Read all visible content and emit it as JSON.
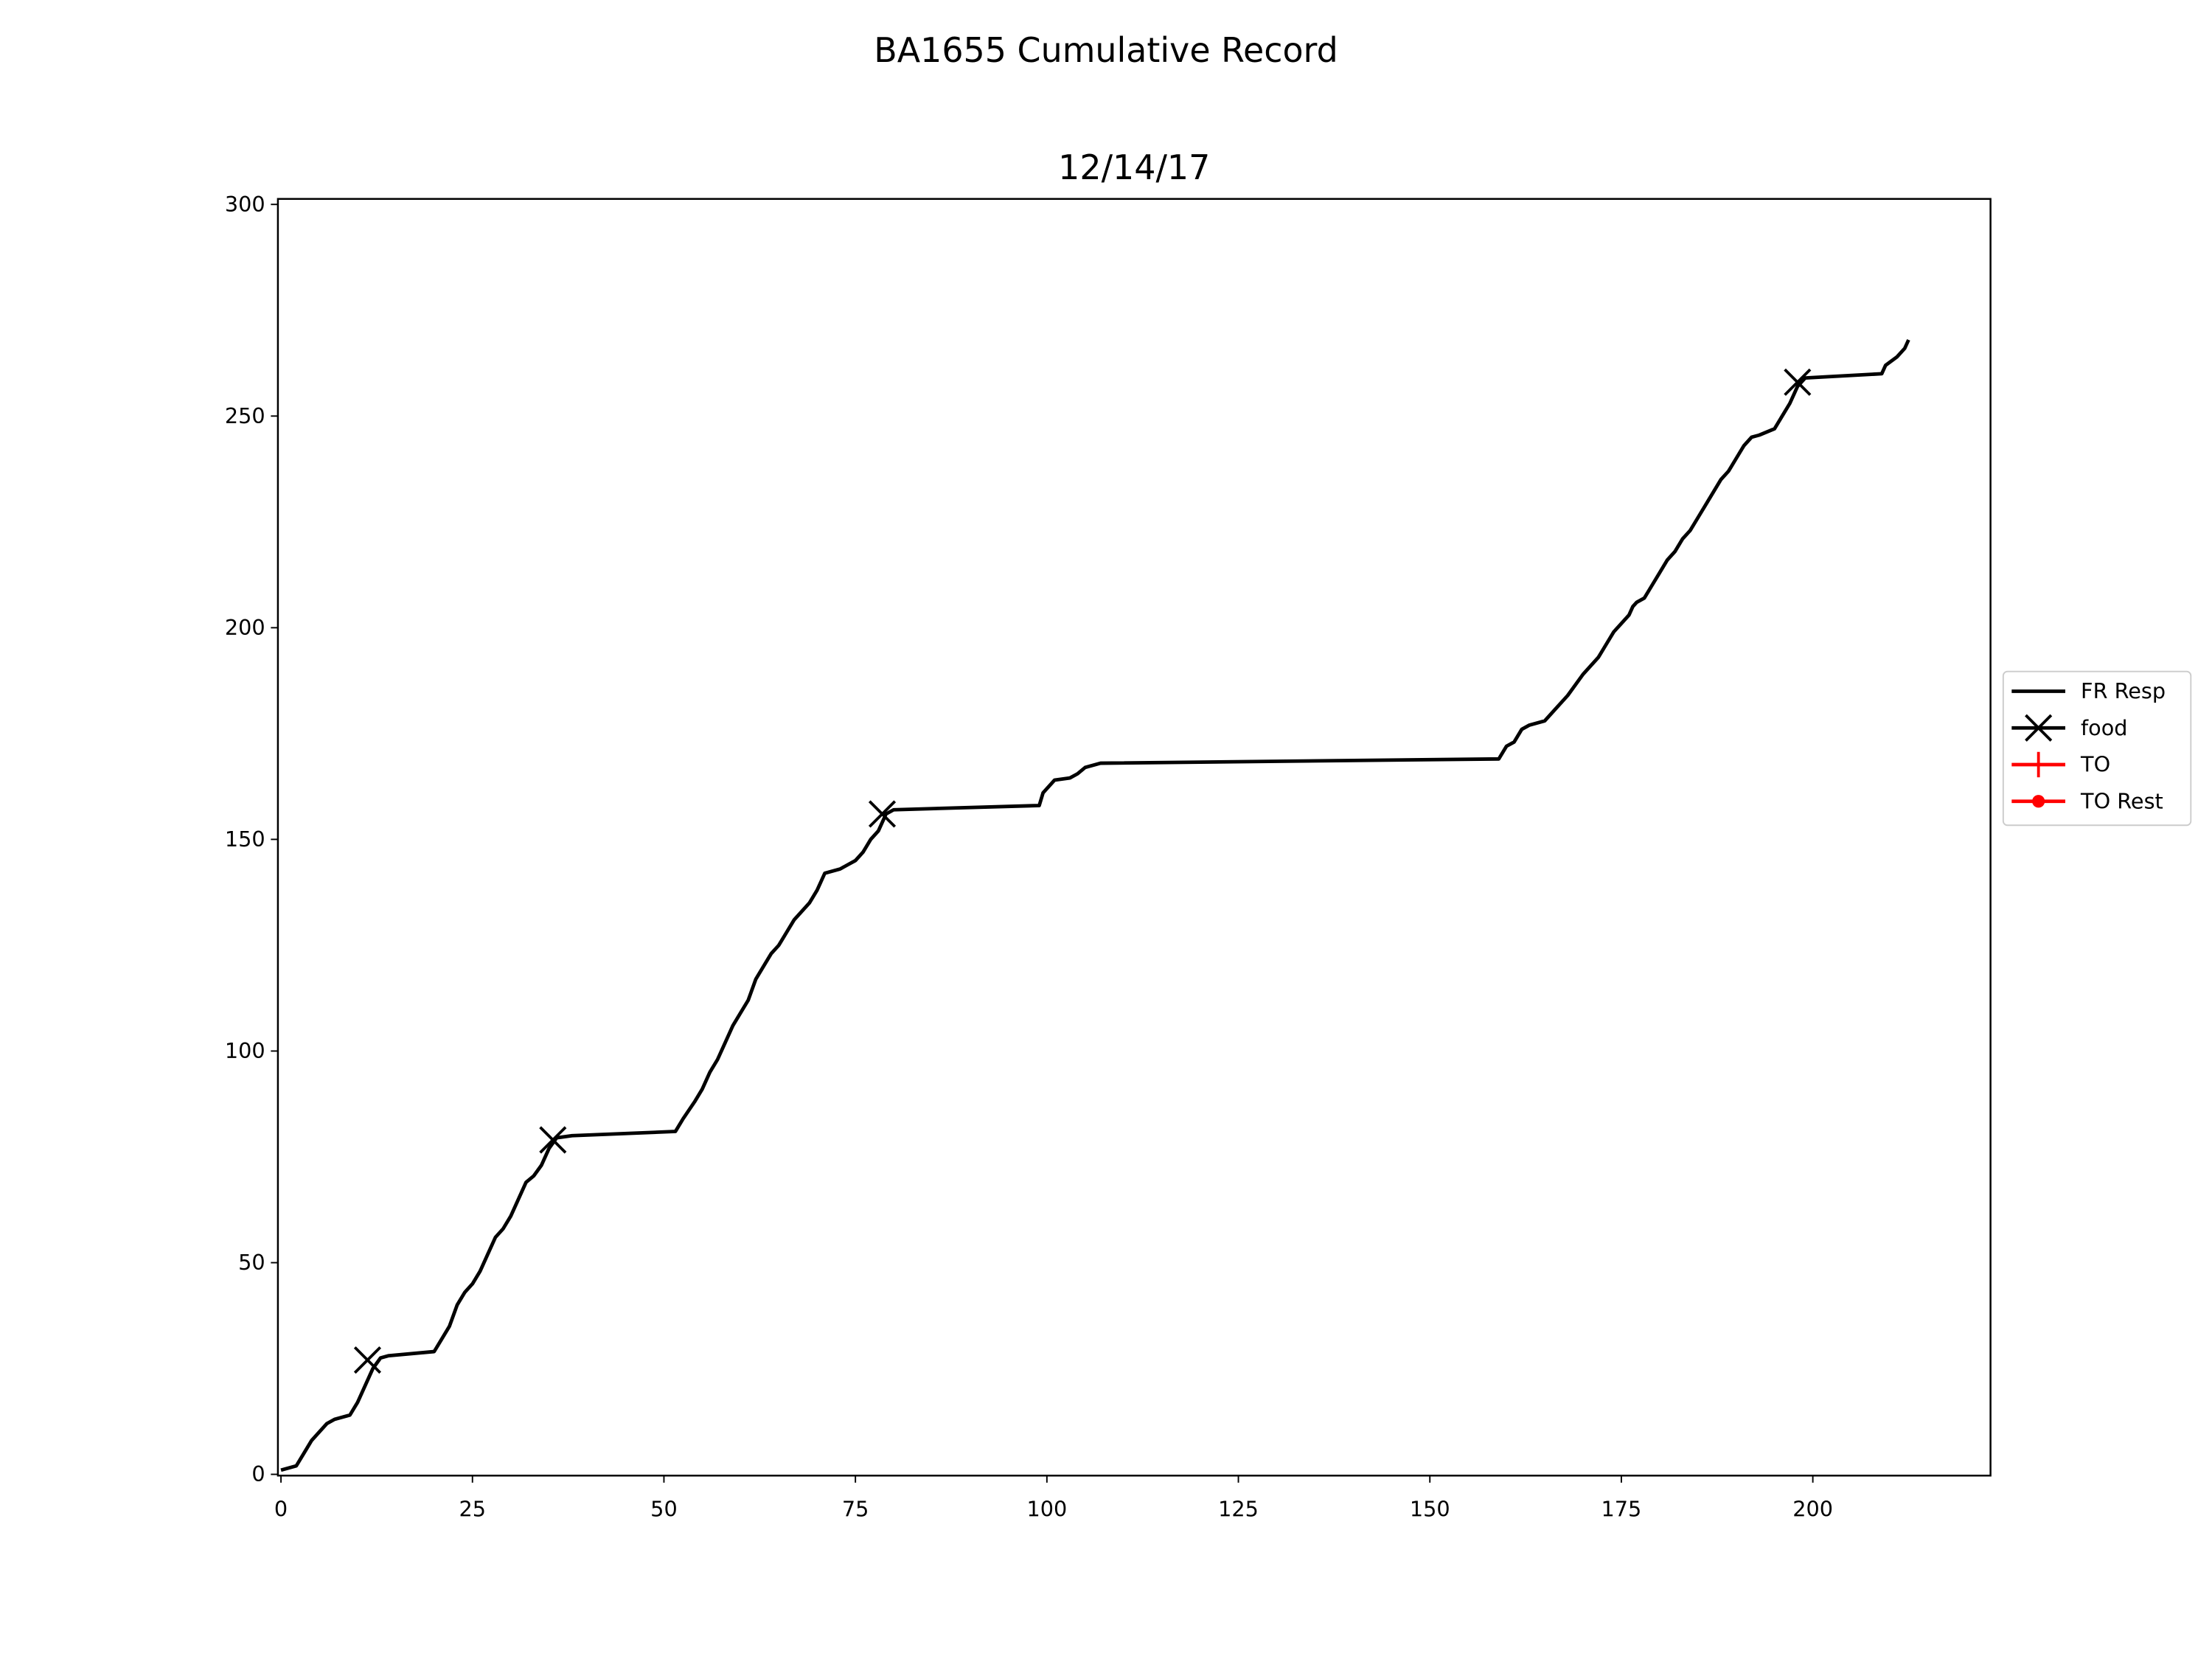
{
  "chart_data": {
    "type": "line",
    "title": "BA1655 Cumulative Record",
    "subtitle": "12/14/17",
    "xlim": [
      -0.4,
      223.2
    ],
    "ylim": [
      -0.3,
      301.3
    ],
    "xticks": [
      0,
      25,
      50,
      75,
      100,
      125,
      150,
      175,
      200
    ],
    "yticks": [
      0,
      50,
      100,
      150,
      200,
      250,
      300
    ],
    "grid": false,
    "legend": "outside right",
    "series": [
      {
        "name": "FR Resp",
        "color": "#000000",
        "marker": "none",
        "x": [
          0,
          2,
          3,
          4,
          5,
          6,
          7,
          9,
          10,
          11,
          12,
          13,
          14,
          20,
          21,
          22,
          23,
          24,
          25,
          26,
          27,
          28,
          29,
          30,
          31,
          32,
          33,
          34,
          35,
          36,
          38,
          51.5,
          52.5,
          54,
          55,
          56,
          57,
          58,
          59,
          60,
          61,
          62,
          63,
          64,
          65,
          66,
          67,
          68,
          69,
          70,
          70.5,
          71,
          72,
          73,
          74,
          75,
          76,
          77,
          78,
          79,
          80,
          99,
          99.5,
          100.5,
          101,
          103,
          104,
          105,
          107,
          159,
          160,
          161,
          162,
          163,
          164,
          165,
          166,
          168,
          170,
          171,
          172,
          173,
          174,
          175,
          176,
          176.5,
          177,
          178,
          179,
          180,
          181,
          182,
          183,
          184,
          185,
          186,
          187,
          188,
          189,
          190,
          191,
          192,
          193,
          195,
          196,
          197,
          198,
          199,
          209,
          209.5,
          211,
          212,
          212.5
        ],
        "y": [
          1,
          2,
          5,
          8,
          10,
          12,
          13,
          14,
          17,
          21,
          25,
          27.5,
          28,
          29,
          32,
          35,
          40,
          43,
          45,
          48,
          52,
          56,
          58,
          61,
          65,
          69,
          70.5,
          73,
          77,
          79.5,
          80,
          81,
          84,
          88,
          91,
          95,
          98,
          102,
          106,
          109,
          112,
          117,
          120,
          123,
          125,
          128,
          131,
          133,
          135,
          138,
          140,
          142,
          142.5,
          143,
          144,
          145,
          147,
          150,
          152,
          156,
          157,
          158,
          161,
          163,
          164,
          164.5,
          165.5,
          167,
          168,
          169,
          172,
          173,
          176,
          177,
          177.5,
          178,
          180,
          184,
          189,
          191,
          193,
          196,
          199,
          201,
          203,
          205,
          206,
          207,
          210,
          213,
          216,
          218,
          221,
          223,
          226,
          229,
          232,
          235,
          237,
          240,
          243,
          245,
          245.5,
          247,
          250,
          253,
          257,
          259,
          260,
          262,
          264,
          266,
          268
        ]
      },
      {
        "name": "food",
        "color": "#000000",
        "marker": "x",
        "x": [
          11.3,
          35.5,
          78.5,
          198
        ],
        "y": [
          27,
          79,
          156,
          258
        ]
      },
      {
        "name": "TO",
        "color": "#ff0000",
        "marker": "+",
        "x": [],
        "y": []
      },
      {
        "name": "TO Rest",
        "color": "#ff0000",
        "marker": "o",
        "x": [],
        "y": []
      }
    ]
  }
}
